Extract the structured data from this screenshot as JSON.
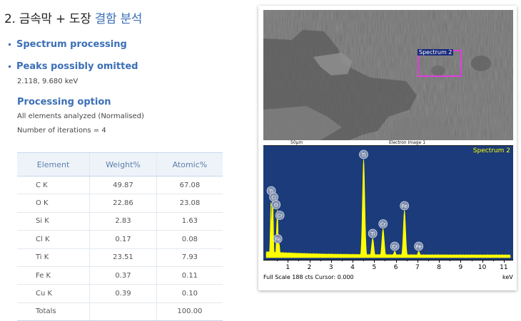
{
  "title": {
    "prefix": "2. 금속막 + 도장 ",
    "highlight": "결함 분석"
  },
  "bullets": {
    "spectrum_processing": "Spectrum processing",
    "peaks_omitted": "Peaks possibly omitted",
    "peaks_values": "2.118, 9.680 keV"
  },
  "processing": {
    "heading": "Processing option",
    "line1": "All elements analyzed (Normalised)",
    "line2": "Number of iterations = 4"
  },
  "table": {
    "headers": [
      "Element",
      "Weight%",
      "Atomic%"
    ],
    "rows": [
      [
        "C K",
        "49.87",
        "67.08"
      ],
      [
        "O K",
        "22.86",
        "23.08"
      ],
      [
        "Si K",
        "2.83",
        "1.63"
      ],
      [
        "Cl K",
        "0.17",
        "0.08"
      ],
      [
        "Ti K",
        "23.51",
        "7.93"
      ],
      [
        "Fe K",
        "0.37",
        "0.11"
      ],
      [
        "Cu K",
        "0.39",
        "0.10"
      ],
      [
        "Totals",
        "",
        "100.00"
      ]
    ]
  },
  "sem": {
    "spectrum_label": "Spectrum 2",
    "scale_label": "50µm",
    "image_label": "Electron Image 1",
    "box_color": "#e23de0"
  },
  "chart_data": {
    "type": "line",
    "title": "Spectrum 2",
    "xlabel": "keV",
    "x_ticks": [
      1,
      2,
      3,
      4,
      5,
      6,
      7,
      8,
      9,
      10,
      11
    ],
    "xlim": [
      0,
      11.3
    ],
    "footer": "Full Scale 188 cts Cursor: 0.000",
    "peak_labels": [
      {
        "element": "Ti",
        "kev": 4.51,
        "height": 0.92
      },
      {
        "element": "Fe",
        "kev": 6.4,
        "height": 0.44
      },
      {
        "element": "Cr",
        "kev": 5.41,
        "height": 0.27
      },
      {
        "element": "Ti",
        "kev": 4.93,
        "height": 0.18
      },
      {
        "element": "Cr",
        "kev": 5.95,
        "height": 0.06
      },
      {
        "element": "Fe",
        "kev": 7.06,
        "height": 0.06
      },
      {
        "element": "Ti",
        "kev": 0.3,
        "height": 0.58
      },
      {
        "element": "Cl",
        "kev": 0.22,
        "height": 0.52
      },
      {
        "element": "O",
        "kev": 0.52,
        "height": 0.45
      },
      {
        "element": "Cr",
        "kev": 0.5,
        "height": 0.35
      },
      {
        "element": "Fe",
        "kev": 0.6,
        "height": 0.13
      }
    ],
    "colors": {
      "background": "#1b3b7a",
      "spectrum": "#ffff00",
      "label": "#ffff00"
    }
  }
}
